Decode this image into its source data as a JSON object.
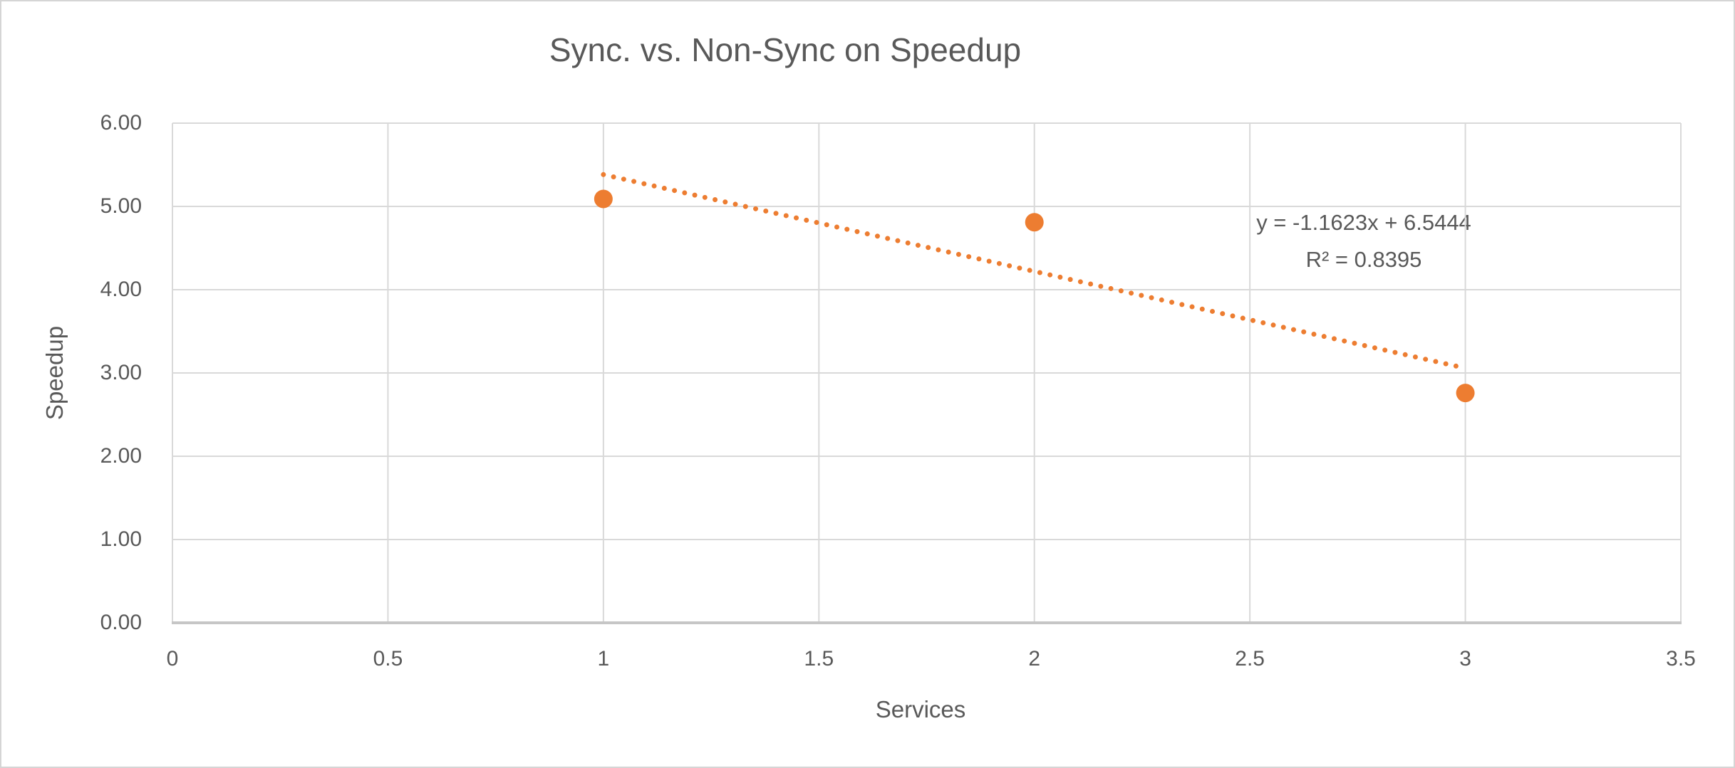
{
  "chart_data": {
    "type": "scatter",
    "title": "Sync. vs. Non-Sync on Speedup",
    "xlabel": "Services",
    "ylabel": "Speedup",
    "xlim": [
      0,
      3.5
    ],
    "ylim": [
      0,
      6
    ],
    "x_tick_step": 0.5,
    "y_tick_step": 1,
    "x_tick_labels": [
      "0",
      "0.5",
      "1",
      "1.5",
      "2",
      "2.5",
      "3",
      "3.5"
    ],
    "y_tick_labels": [
      "0.00",
      "1.00",
      "2.00",
      "3.00",
      "4.00",
      "5.00",
      "6.00"
    ],
    "grid": true,
    "legend": "none",
    "series": [
      {
        "name": "Speedup",
        "points": [
          [
            1,
            5.09
          ],
          [
            2,
            4.81
          ],
          [
            3,
            2.76
          ]
        ]
      }
    ],
    "trendline": {
      "kind": "linear",
      "style": "dotted",
      "slope": -1.1623,
      "intercept": 6.5444,
      "x_start": 1,
      "x_end": 3,
      "r_squared": 0.8395,
      "label_line1": "y = -1.1623x + 6.5444",
      "label_line2": "R² = 0.8395"
    },
    "colors": {
      "point": "#ED7D31",
      "trendline": "#ED7D31",
      "gridline": "#D9D9D9",
      "axis_line": "#C6C6C6",
      "text": "#595959"
    }
  }
}
